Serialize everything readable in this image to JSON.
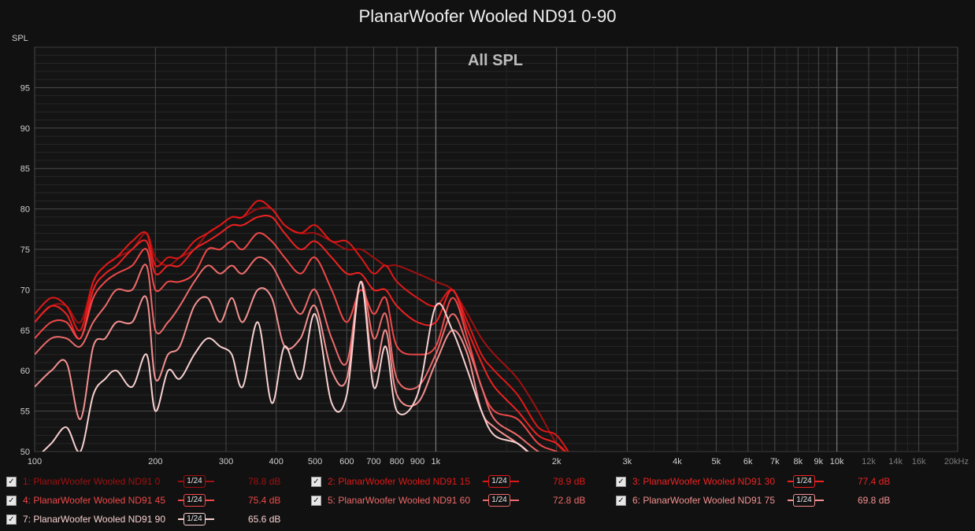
{
  "title": "PlanarWoofer Wooled ND91 0-90",
  "ylabel": "SPL",
  "chart_data": {
    "type": "line",
    "title": "PlanarWoofer Wooled ND91 0-90",
    "subtitle": "All SPL",
    "ylabel": "SPL",
    "xscale": "log",
    "xlim": [
      100,
      20000
    ],
    "ylim": [
      50,
      100
    ],
    "grid": true,
    "legend_placement": "bottom",
    "x_ticks": [
      100,
      200,
      300,
      400,
      500,
      600,
      700,
      800,
      900,
      1000,
      2000,
      3000,
      4000,
      5000,
      6000,
      7000,
      8000,
      9000,
      10000,
      12000,
      14000,
      16000,
      20000
    ],
    "x_tick_labels": [
      "100",
      "200",
      "300",
      "400",
      "500",
      "600",
      "700",
      "800",
      "900",
      "1k",
      "2k",
      "3k",
      "4k",
      "5k",
      "6k",
      "7k",
      "8k",
      "9k",
      "10k",
      "12k",
      "14k",
      "16k",
      "20kHz"
    ],
    "y_ticks": [
      55,
      60,
      65,
      70,
      75,
      80,
      85,
      90,
      95
    ],
    "series": [
      {
        "name": "1: PlanarWoofer Wooled ND91 0",
        "value_label": "78.8 dB",
        "smoothing": "1/24",
        "color": "#a01010",
        "x": [
          100,
          110,
          120,
          130,
          140,
          150,
          160,
          175,
          190,
          200,
          215,
          230,
          250,
          270,
          290,
          310,
          330,
          360,
          390,
          420,
          460,
          500,
          550,
          600,
          650,
          700,
          750,
          800,
          900,
          1000,
          1100,
          1200,
          1300,
          1400,
          1600,
          1800,
          2000,
          2200
        ],
        "y": [
          66,
          68,
          68,
          66,
          71,
          73,
          74,
          75,
          77,
          74,
          73,
          74,
          75,
          77,
          78,
          79,
          79,
          80,
          80,
          78,
          77,
          77,
          76,
          75,
          75,
          74,
          73,
          73,
          72,
          71,
          70,
          67,
          64,
          62,
          59,
          55,
          51,
          49
        ]
      },
      {
        "name": "2: PlanarWoofer Wooled ND91 15",
        "value_label": "78.9 dB",
        "smoothing": "1/24",
        "color": "#e01818",
        "x": [
          100,
          110,
          120,
          130,
          140,
          150,
          160,
          175,
          190,
          200,
          215,
          230,
          250,
          270,
          290,
          310,
          330,
          360,
          390,
          420,
          460,
          500,
          550,
          600,
          650,
          700,
          750,
          800,
          900,
          1000,
          1100,
          1200,
          1300,
          1400,
          1600,
          1800,
          2000,
          2200
        ],
        "y": [
          67,
          69,
          68,
          65,
          71,
          73,
          74,
          76,
          77,
          73,
          74,
          74,
          76,
          77,
          78,
          79,
          79,
          81,
          80,
          78,
          77,
          78,
          76,
          76,
          74,
          72,
          73,
          71,
          69,
          68,
          70,
          66,
          62,
          60,
          57,
          53,
          52,
          48
        ]
      },
      {
        "name": "3: PlanarWoofer Wooled ND91 30",
        "value_label": "77.4 dB",
        "smoothing": "1/24",
        "color": "#ee2222",
        "x": [
          100,
          110,
          120,
          130,
          140,
          150,
          160,
          175,
          190,
          200,
          215,
          230,
          250,
          270,
          290,
          310,
          330,
          360,
          390,
          420,
          460,
          500,
          550,
          600,
          650,
          700,
          750,
          800,
          900,
          1000,
          1100,
          1200,
          1300,
          1400,
          1600,
          1800,
          2000,
          2200
        ],
        "y": [
          66,
          68,
          67,
          64,
          70,
          72,
          73,
          75,
          76,
          72,
          73,
          73,
          75,
          76,
          77,
          78,
          78,
          79,
          79,
          77,
          75,
          76,
          74,
          72,
          72,
          70,
          70,
          68,
          66,
          66,
          70,
          65,
          61,
          58,
          55,
          52,
          51,
          47
        ]
      },
      {
        "name": "4: PlanarWoofer Wooled ND91 45",
        "value_label": "75.4 dB",
        "smoothing": "1/24",
        "color": "#f04848",
        "x": [
          100,
          110,
          120,
          130,
          140,
          150,
          160,
          175,
          190,
          200,
          215,
          230,
          250,
          270,
          290,
          310,
          330,
          360,
          390,
          420,
          460,
          500,
          550,
          600,
          650,
          700,
          750,
          800,
          900,
          1000,
          1100,
          1200,
          1300,
          1400,
          1600,
          1800,
          2000,
          2200
        ],
        "y": [
          64,
          66,
          66,
          64,
          69,
          71,
          72,
          73,
          75,
          70,
          71,
          71,
          72,
          75,
          75,
          76,
          75,
          77,
          76,
          74,
          72,
          74,
          70,
          66,
          70,
          67,
          69,
          63,
          62,
          63,
          69,
          64,
          58,
          55,
          54,
          51,
          50,
          47
        ]
      },
      {
        "name": "5: PlanarWoofer Wooled ND91 60",
        "value_label": "72.8 dB",
        "smoothing": "1/24",
        "color": "#ee6a6a",
        "x": [
          100,
          110,
          120,
          130,
          140,
          150,
          160,
          175,
          190,
          200,
          215,
          230,
          250,
          270,
          290,
          310,
          330,
          360,
          390,
          420,
          460,
          500,
          550,
          600,
          650,
          700,
          750,
          800,
          900,
          1000,
          1100,
          1200,
          1300,
          1400,
          1600,
          1800,
          2000,
          2200
        ],
        "y": [
          62,
          64,
          64,
          63,
          66,
          68,
          70,
          70,
          73,
          65,
          66,
          68,
          71,
          73,
          72,
          73,
          72,
          74,
          73,
          70,
          67,
          70,
          64,
          61,
          71,
          64,
          67,
          59,
          58,
          62,
          67,
          63,
          58,
          54,
          52,
          50,
          49,
          46
        ]
      },
      {
        "name": "6: PlanarWoofer Wooled ND91 75",
        "value_label": "69.8 dB",
        "smoothing": "1/24",
        "color": "#f49090",
        "x": [
          100,
          110,
          120,
          130,
          140,
          150,
          160,
          175,
          190,
          200,
          215,
          230,
          250,
          270,
          290,
          310,
          330,
          360,
          390,
          420,
          460,
          500,
          550,
          600,
          650,
          700,
          750,
          800,
          900,
          1000,
          1100,
          1200,
          1300,
          1400,
          1600,
          1800,
          2000,
          2200
        ],
        "y": [
          58,
          60,
          61,
          54,
          63,
          64,
          66,
          66,
          69,
          59,
          62,
          63,
          68,
          69,
          66,
          69,
          66,
          70,
          69,
          63,
          64,
          68,
          60,
          59,
          71,
          60,
          65,
          57,
          56,
          61,
          65,
          62,
          55,
          53,
          51,
          49,
          49,
          46
        ]
      },
      {
        "name": "7: PlanarWoofer Wooled ND91 90",
        "value_label": "65.6 dB",
        "smoothing": "1/24",
        "color": "#f8d0d0",
        "x": [
          100,
          110,
          120,
          130,
          140,
          150,
          160,
          175,
          190,
          200,
          215,
          230,
          250,
          270,
          290,
          310,
          330,
          360,
          390,
          420,
          460,
          500,
          550,
          600,
          650,
          700,
          750,
          800,
          900,
          1000,
          1100,
          1200,
          1300,
          1400,
          1600,
          1800,
          2000,
          2200
        ],
        "y": [
          48,
          51,
          53,
          50,
          57,
          59,
          60,
          58,
          62,
          55,
          60,
          59,
          62,
          64,
          63,
          62,
          58,
          66,
          56,
          63,
          59,
          67,
          56,
          57,
          71,
          58,
          63,
          55,
          57,
          68,
          65,
          60,
          55,
          52,
          51,
          48,
          48,
          45
        ]
      }
    ]
  }
}
